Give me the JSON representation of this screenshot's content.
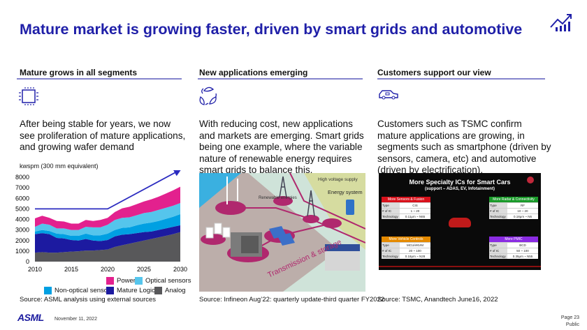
{
  "title": "Mature market is growing faster, driven by smart grids and automotive",
  "columns": [
    {
      "heading": "Mature grows in all segments",
      "icon": "chip-icon",
      "text": "After being stable for years, we now see proliferation of mature applications, and growing wafer demand",
      "source": "Source: ASML analysis using external sources"
    },
    {
      "heading": "New applications emerging",
      "icon": "recycle-leaves-icon",
      "text": "With reducing cost, new applications and markets are emerging. Smart grids being one example, where the variable nature of renewable energy requires smart grids to balance this.",
      "source": "Source: Infineon Aug’22: quarterly update-third quarter FY2022"
    },
    {
      "heading": "Customers support our view",
      "icon": "electric-car-icon",
      "text": "Customers such as TSMC confirm mature applications are growing, in segments such as smartphone (driven by sensors, camera, etc) and automotive (driven by electrification).",
      "source": "Source: TSMC, Anandtech June16, 2022"
    }
  ],
  "chart_data": {
    "type": "area",
    "stacked": true,
    "ylabel": "kwspm (300 mm equivalent)",
    "ylim": [
      0,
      8000
    ],
    "yticks": [
      "0",
      "1000",
      "2000",
      "3000",
      "4000",
      "5000",
      "6000",
      "7000",
      "8000"
    ],
    "xticks": [
      "2010",
      "2015",
      "2020",
      "2025",
      "2030"
    ],
    "x": [
      2010,
      2011,
      2012,
      2013,
      2014,
      2015,
      2016,
      2017,
      2018,
      2019,
      2020,
      2021,
      2022,
      2023,
      2024,
      2025,
      2026,
      2027,
      2028,
      2029,
      2030
    ],
    "series": [
      {
        "name": "Analog",
        "color": "#58585a",
        "values": [
          850,
          900,
          850,
          850,
          900,
          950,
          980,
          1050,
          1050,
          1100,
          1150,
          1400,
          1550,
          1700,
          1850,
          2000,
          2150,
          2300,
          2450,
          2600,
          2800
        ]
      },
      {
        "name": "Mature Logic",
        "color": "#1c1aa0",
        "values": [
          1750,
          1800,
          1750,
          1400,
          1300,
          1100,
          1020,
          1100,
          950,
          850,
          900,
          1000,
          1000,
          900,
          850,
          800,
          700,
          700,
          700,
          700,
          650
        ]
      },
      {
        "name": "Non-optical sensors",
        "color": "#00a0e2",
        "values": [
          250,
          300,
          300,
          400,
          400,
          400,
          450,
          500,
          500,
          550,
          600,
          600,
          650,
          650,
          750,
          800,
          850,
          850,
          900,
          950,
          1050
        ]
      },
      {
        "name": "Optical sensors",
        "color": "#55c5ec",
        "values": [
          450,
          600,
          600,
          500,
          550,
          550,
          550,
          650,
          750,
          750,
          850,
          950,
          950,
          950,
          950,
          1000,
          1000,
          1050,
          1050,
          1050,
          1050
        ]
      },
      {
        "name": "Power",
        "color": "#e3218e",
        "values": [
          800,
          750,
          650,
          700,
          650,
          600,
          600,
          650,
          600,
          700,
          650,
          750,
          900,
          1000,
          1050,
          1100,
          1200,
          1250,
          1350,
          1450,
          1550
        ]
      }
    ],
    "trend_line": {
      "color": "#2b2bc0",
      "points": [
        [
          2010,
          5000
        ],
        [
          2020,
          5000
        ],
        [
          2030,
          8700
        ]
      ]
    },
    "legend": "bottom-right",
    "grid": false
  },
  "smart_grid_image": {
    "labels": [
      "High voltage supply",
      "Energy system",
      "Renewable energies",
      "Transmission & storage"
    ]
  },
  "tsmc_image": {
    "title": "More Specialty ICs for Smart Cars",
    "subtitle": "(support – ADAS, EV, Infotainment)",
    "boxes": [
      {
        "name": "More Sensors & Fusion",
        "color": "#d8111b",
        "rows": [
          [
            "Type",
            "CIS"
          ],
          [
            "# of IC",
            "1 ~ 20"
          ],
          [
            "Technology",
            "0.11μm ~ N65"
          ]
        ]
      },
      {
        "name": "More Radar & Connectivity",
        "color": "#1a9a2a",
        "rows": [
          [
            "Type",
            "RF"
          ],
          [
            "# of IC",
            "10 ~ 20"
          ],
          [
            "Technology",
            "0.18μm ~ N6"
          ]
        ]
      },
      {
        "name": "More Vehicle Controls",
        "color": "#e58a00",
        "rows": [
          [
            "Type",
            "MCU/eNVM"
          ],
          [
            "# of IC",
            "20 ~ 100"
          ],
          [
            "Technology",
            "0.18μm ~ N28"
          ]
        ]
      },
      {
        "name": "More PMIC",
        "color": "#8a2be2",
        "rows": [
          [
            "Type",
            "BCD"
          ],
          [
            "# of IC",
            "50 ~ 100"
          ],
          [
            "Technology",
            "0.35μm ~ N55"
          ]
        ]
      }
    ]
  },
  "footer": {
    "logo": "ASML",
    "date": "November 11, 2022",
    "page": "Page 23",
    "classification": "Public"
  },
  "colors": {
    "title": "#1f1fa8",
    "rule": "#8585cc",
    "icon": "#1f1fa8"
  }
}
